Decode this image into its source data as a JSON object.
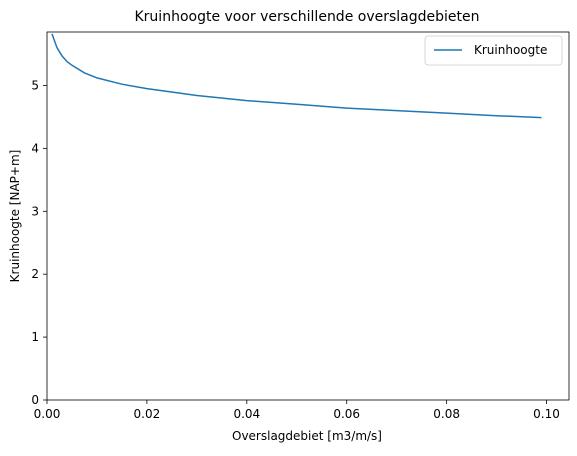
{
  "chart_data": {
    "type": "line",
    "title": "Kruinhoogte voor verschillende overslagdebieten",
    "xlabel": "Overslagdebiet [m3/m/s]",
    "ylabel": "Kruinhoogte [NAP+m]",
    "xlim": [
      0,
      0.1045
    ],
    "ylim": [
      0,
      5.85
    ],
    "xticks": [
      "0.00",
      "0.02",
      "0.04",
      "0.06",
      "0.08",
      "0.10"
    ],
    "xtick_values": [
      0,
      0.02,
      0.04,
      0.06,
      0.08,
      0.1
    ],
    "yticks": [
      "0",
      "1",
      "2",
      "3",
      "4",
      "5"
    ],
    "ytick_values": [
      0,
      1,
      2,
      3,
      4,
      5
    ],
    "grid": false,
    "legend_position": "top-right",
    "series": [
      {
        "name": "Kruinhoogte",
        "color": "#1f77b4",
        "x": [
          0.001,
          0.002,
          0.003,
          0.004,
          0.005,
          0.0075,
          0.01,
          0.015,
          0.02,
          0.03,
          0.04,
          0.05,
          0.06,
          0.07,
          0.08,
          0.09,
          0.099
        ],
        "y": [
          5.82,
          5.6,
          5.47,
          5.38,
          5.32,
          5.2,
          5.12,
          5.02,
          4.95,
          4.84,
          4.76,
          4.7,
          4.64,
          4.6,
          4.56,
          4.52,
          4.49
        ]
      }
    ]
  }
}
